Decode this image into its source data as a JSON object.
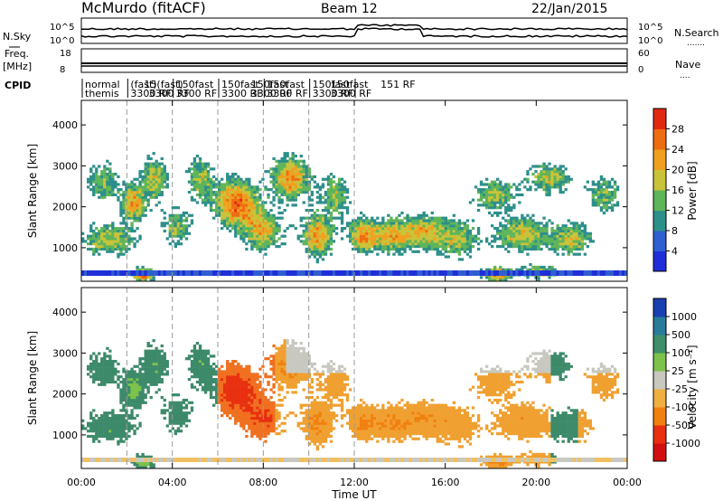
{
  "header": {
    "station": "McMurdo (fitACF)",
    "beam": "Beam 12",
    "date": "22/Jan/2015"
  },
  "side_labels": {
    "nsky": "N.Sky",
    "freq": "Freq.",
    "freq_unit": "[MHz]",
    "cpid": "CPID",
    "nsearch": "N.Search",
    "nave": "Nave"
  },
  "small_panels": {
    "nsky_ticks": [
      "10^5",
      "10^0"
    ],
    "nsearch_ticks": [
      "10^5",
      "10^0"
    ],
    "freq_ticks": [
      "18",
      "8"
    ],
    "nave_ticks": [
      "60",
      "0"
    ]
  },
  "cpid": {
    "line1": [
      "normal",
      "(fast)",
      "15(fast)",
      "150fast",
      "150fast",
      "150fast",
      "150fast",
      "150fast",
      "150fast",
      "151 RF"
    ],
    "line2": [
      "themis",
      "3300 RF",
      "3300 RF",
      "3300 RF",
      "3300 RF",
      "3300 RF",
      "3300 RF",
      "3300 RF",
      "3300 RF"
    ]
  },
  "chart_data": [
    {
      "type": "heatmap",
      "name": "power",
      "ylabel": "Slant Range [km]",
      "yticks": [
        "1000",
        "2000",
        "3000",
        "4000"
      ],
      "ylim": [
        180,
        4600
      ],
      "xlim_hours": [
        0,
        24
      ],
      "colorbar_label": "Power [dB]",
      "colorbar_ticks": [
        "4",
        "8",
        "12",
        "16",
        "20",
        "24",
        "28"
      ],
      "colorbar_colors": [
        "#1f2ed8",
        "#2f5fd0",
        "#2d8f8a",
        "#5fb55a",
        "#c9c33a",
        "#f0a020",
        "#ee6d10",
        "#e02a10"
      ],
      "colors": {
        "low": "#2040c8",
        "mid": "#3ea37a",
        "high": "#f0a030",
        "peak": "#e03010"
      }
    },
    {
      "type": "heatmap",
      "name": "velocity",
      "ylabel": "Slant Range [km]",
      "yticks": [
        "1000",
        "2000",
        "3000",
        "4000"
      ],
      "ylim": [
        180,
        4600
      ],
      "xlim_hours": [
        0,
        24
      ],
      "xticks": [
        "00:00",
        "04:00",
        "08:00",
        "12:00",
        "16:00",
        "20:00",
        "00:00"
      ],
      "xlabel": "Time UT",
      "colorbar_label": "Velocity [m s⁻¹]",
      "colorbar_ticks": [
        "1000",
        "500",
        "100",
        "25",
        "-25",
        "-100",
        "-500",
        "-1000"
      ],
      "colorbar_colors": [
        "#1a3fb0",
        "#2a7a9a",
        "#3e8f6a",
        "#7dc24a",
        "#c8c8c0",
        "#f0b040",
        "#f08010",
        "#e83010",
        "#d01010"
      ],
      "colors": {
        "positive": "#3d8a6a",
        "zero": "#c8c8c0",
        "negative": "#f08010",
        "strong_negative": "#e03010"
      }
    }
  ]
}
